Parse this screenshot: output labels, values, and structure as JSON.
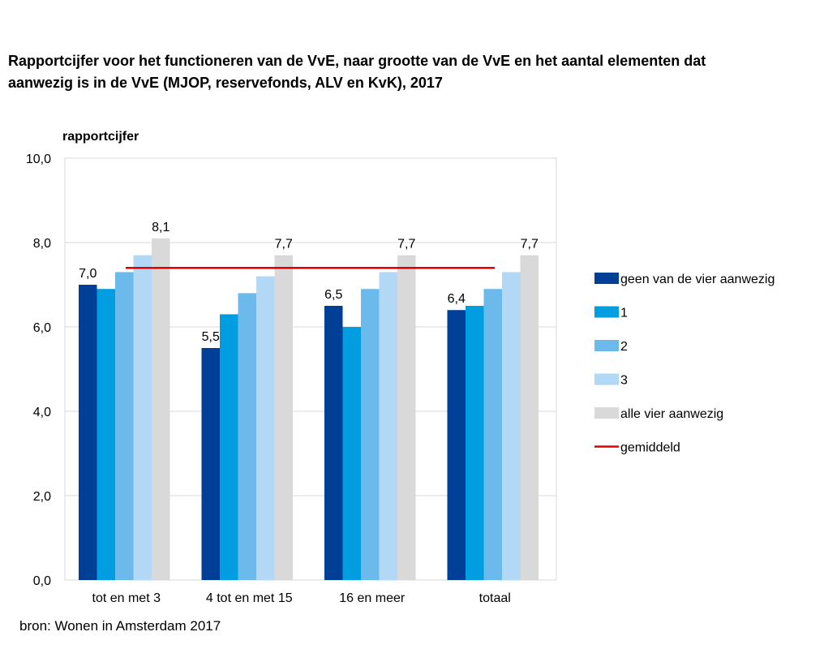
{
  "title_lines": [
    "Rapportcijfer voor het functioneren van de VvE, naar grootte van de VvE en het aantal elementen dat",
    "aanwezig is in de VvE (MJOP, reservefonds, ALV en KvK), 2017"
  ],
  "source": "bron: Wonen in Amsterdam 2017",
  "colors": {
    "s0": "#003f97",
    "s1": "#009de0",
    "s2": "#6cbaec",
    "s3": "#b3d8f6",
    "s4": "#d9d9d9",
    "average": "#e00000",
    "grid": "#d9d9d9"
  },
  "chart_data": {
    "type": "bar",
    "ylabel": "rapportcijfer",
    "ylim": [
      0,
      10
    ],
    "yticks": [
      0,
      2,
      4,
      6,
      8,
      10
    ],
    "ytick_labels": [
      "0,0",
      "2,0",
      "4,0",
      "6,0",
      "8,0",
      "10,0"
    ],
    "categories": [
      "tot en met 3",
      "4 tot en met 15",
      "16 en meer",
      "totaal"
    ],
    "series": [
      {
        "name": "geen van de vier aanwezig",
        "values": [
          7.0,
          5.5,
          6.5,
          6.4
        ],
        "labels": [
          "7,0",
          "5,5",
          "6,5",
          "6,4"
        ]
      },
      {
        "name": "1",
        "values": [
          6.9,
          6.3,
          6.0,
          6.5
        ]
      },
      {
        "name": "2",
        "values": [
          7.3,
          6.8,
          6.9,
          6.9
        ]
      },
      {
        "name": "3",
        "values": [
          7.7,
          7.2,
          7.3,
          7.3
        ]
      },
      {
        "name": "alle vier aanwezig",
        "values": [
          8.1,
          7.7,
          7.7,
          7.7
        ],
        "labels": [
          "8,1",
          "7,7",
          "7,7",
          "7,7"
        ]
      }
    ],
    "average": {
      "name": "gemiddeld",
      "value": 7.4
    },
    "grid": true,
    "legend_position": "right"
  }
}
